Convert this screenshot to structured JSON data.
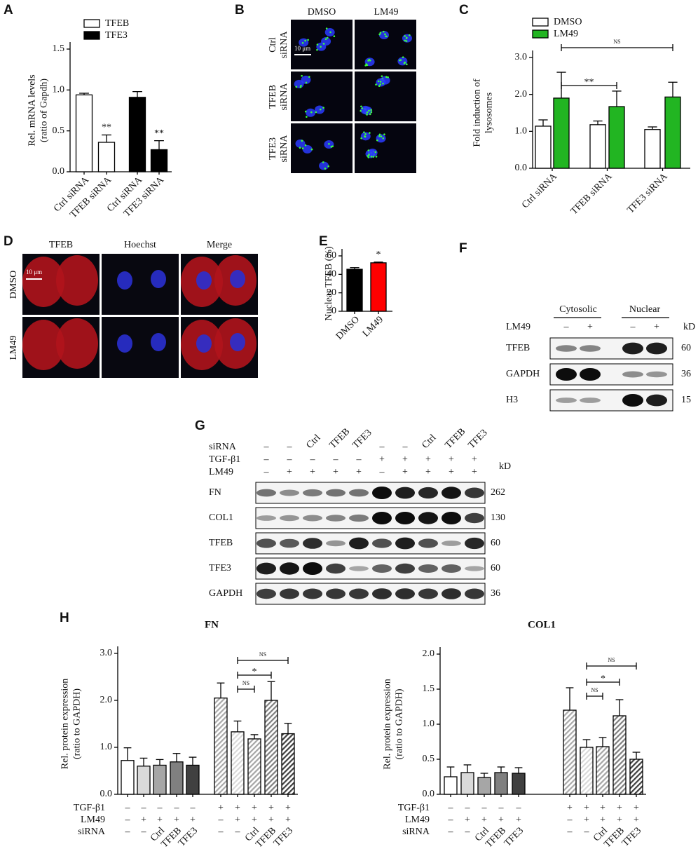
{
  "panel_labels": [
    "A",
    "B",
    "C",
    "D",
    "E",
    "F",
    "G",
    "H"
  ],
  "B": {
    "columns": [
      "DMSO",
      "LM49"
    ],
    "rows": [
      [
        "Ctrl",
        "siRNA"
      ],
      [
        "TFEB",
        "siRNA"
      ],
      [
        "TFE3",
        "siRNA"
      ]
    ],
    "scale_bar": "10 μm"
  },
  "D": {
    "columns": [
      "TFEB",
      "Hoechst",
      "Merge"
    ],
    "rows": [
      "DMSO",
      "LM49"
    ],
    "scale_bar": "10 μm"
  },
  "F": {
    "headers": [
      "Cytosolic",
      "Nuclear"
    ],
    "treatment": {
      "name": "LM49",
      "signs": [
        "–",
        "+",
        "–",
        "+"
      ]
    },
    "unit": "kD",
    "rows": [
      {
        "name": "TFEB",
        "kd": 60
      },
      {
        "name": "GAPDH",
        "kd": 36
      },
      {
        "name": "H3",
        "kd": 15
      }
    ]
  },
  "G": {
    "conditions": [
      {
        "name": "siRNA",
        "values": [
          "–",
          "–",
          "Ctrl",
          "TFEB",
          "TFE3",
          "–",
          "–",
          "Ctrl",
          "TFEB",
          "TFE3"
        ]
      },
      {
        "name": "TGF-β1",
        "values": [
          "–",
          "–",
          "–",
          "–",
          "–",
          "+",
          "+",
          "+",
          "+",
          "+"
        ]
      },
      {
        "name": "LM49",
        "values": [
          "–",
          "+",
          "+",
          "+",
          "+",
          "–",
          "+",
          "+",
          "+",
          "+"
        ]
      }
    ],
    "unit": "kD",
    "rows": [
      {
        "name": "FN",
        "kd": 262
      },
      {
        "name": "COL1",
        "kd": 130
      },
      {
        "name": "TFEB",
        "kd": 60
      },
      {
        "name": "TFE3",
        "kd": 60
      },
      {
        "name": "GAPDH",
        "kd": 36
      }
    ]
  },
  "chart_data": [
    {
      "type": "bar",
      "y_label": [
        "Rel. mRNA levels",
        "(ratio of Gapdh)"
      ],
      "categories": [
        "Ctrl siRNA",
        "TFEB siRNA",
        "Ctrl siRNA",
        "TFE3 siRNA"
      ],
      "values": [
        0.94,
        0.36,
        0.91,
        0.27
      ],
      "errors": [
        0.02,
        0.09,
        0.07,
        0.11
      ],
      "colors": [
        "#ffffff",
        "#ffffff",
        "#000000",
        "#000000"
      ],
      "legend": [
        {
          "name": "TFEB",
          "color": "#ffffff"
        },
        {
          "name": "TFE3",
          "color": "#000000"
        }
      ],
      "annotations": [
        "**",
        "**"
      ],
      "ylim": [
        0,
        1.5
      ],
      "yticks": [
        {
          "value": 0,
          "label": "0.0"
        },
        0.5,
        {
          "value": 1,
          "label": "1.0"
        },
        1.5
      ]
    },
    {
      "type": "grouped-bar",
      "y_label": [
        "Fold induction of",
        "lysosomes"
      ],
      "categories": [
        "Ctrl siRNA",
        "TFEB siRNA",
        "TFE3 siRNA"
      ],
      "series": [
        {
          "name": "DMSO",
          "color": "#ffffff",
          "values": [
            1.14,
            1.18,
            1.05
          ],
          "errors": [
            0.17,
            0.1,
            0.07
          ]
        },
        {
          "name": "LM49",
          "color": "#22b522",
          "values": [
            1.9,
            1.67,
            1.93
          ],
          "errors": [
            0.7,
            0.42,
            0.4
          ]
        }
      ],
      "brackets": [
        "**",
        "NS"
      ],
      "ylim": [
        0,
        3
      ],
      "yticks": [
        {
          "value": 0,
          "label": "0.0"
        },
        {
          "value": 1,
          "label": "1.0"
        },
        {
          "value": 2,
          "label": "2.0"
        },
        {
          "value": 3,
          "label": "3.0"
        }
      ]
    },
    {
      "type": "bar",
      "y_label": [
        "Nuclear TFEB (%)"
      ],
      "categories": [
        "DMSO",
        "LM49"
      ],
      "values": [
        45.5,
        52.5
      ],
      "errors": [
        1.8,
        0.8
      ],
      "colors": [
        "#000000",
        "#ff0000"
      ],
      "annotations": [
        "*"
      ],
      "ylim": [
        0,
        60
      ],
      "yticks": [
        0,
        20,
        40,
        60
      ]
    },
    {
      "type": "bar",
      "title": "FN",
      "y_label": [
        "Rel. protein expression",
        "(ratio to GAPDH)"
      ],
      "values": [
        0.72,
        0.6,
        0.62,
        0.69,
        0.62,
        2.05,
        1.33,
        1.18,
        2.0,
        1.29
      ],
      "errors": [
        0.27,
        0.17,
        0.12,
        0.18,
        0.17,
        0.32,
        0.23,
        0.09,
        0.4,
        0.22
      ],
      "colors": [
        "#ffffff",
        "#d9d9d9",
        "#a6a6a6",
        "#808080",
        "#404040",
        "#ffffff",
        "#d9d9d9",
        "#a6a6a6",
        "#808080",
        "#404040"
      ],
      "hatch": [
        false,
        false,
        false,
        false,
        false,
        true,
        true,
        true,
        true,
        true
      ],
      "conditions": [
        {
          "name": "TGF-β1",
          "values": [
            "–",
            "–",
            "–",
            "–",
            "–",
            "+",
            "+",
            "+",
            "+",
            "+"
          ]
        },
        {
          "name": "LM49",
          "values": [
            "–",
            "+",
            "+",
            "+",
            "+",
            "–",
            "+",
            "+",
            "+",
            "+"
          ]
        },
        {
          "name": "siRNA",
          "values": [
            "–",
            "–",
            "Ctrl",
            "TFEB",
            "TFE3",
            "–",
            "–",
            "Ctrl",
            "TFEB",
            "TFE3"
          ]
        }
      ],
      "brackets": [
        "NS",
        "*",
        "NS"
      ],
      "ylim": [
        0,
        3
      ],
      "yticks": [
        {
          "value": 0,
          "label": "0.0"
        },
        {
          "value": 1,
          "label": "1.0"
        },
        {
          "value": 2,
          "label": "2.0"
        },
        {
          "value": 3,
          "label": "3.0"
        }
      ]
    },
    {
      "type": "bar",
      "title": "COL1",
      "y_label": [
        "Rel. protein expression",
        "(ratio to GAPDH)"
      ],
      "values": [
        0.25,
        0.31,
        0.24,
        0.31,
        0.3,
        1.2,
        0.67,
        0.68,
        1.12,
        0.5
      ],
      "errors": [
        0.14,
        0.11,
        0.06,
        0.08,
        0.08,
        0.32,
        0.11,
        0.13,
        0.23,
        0.1
      ],
      "colors": [
        "#ffffff",
        "#d9d9d9",
        "#a6a6a6",
        "#808080",
        "#404040",
        "#ffffff",
        "#d9d9d9",
        "#a6a6a6",
        "#808080",
        "#404040"
      ],
      "hatch": [
        false,
        false,
        false,
        false,
        false,
        true,
        true,
        true,
        true,
        true
      ],
      "conditions": [
        {
          "name": "TGF-β1",
          "values": [
            "–",
            "–",
            "–",
            "–",
            "–",
            "+",
            "+",
            "+",
            "+",
            "+"
          ]
        },
        {
          "name": "LM49",
          "values": [
            "–",
            "+",
            "+",
            "+",
            "+",
            "–",
            "+",
            "+",
            "+",
            "+"
          ]
        },
        {
          "name": "siRNA",
          "values": [
            "–",
            "–",
            "Ctrl",
            "TFEB",
            "TFE3",
            "–",
            "–",
            "Ctrl",
            "TFEB",
            "TFE3"
          ]
        }
      ],
      "brackets": [
        "NS",
        "*",
        "NS"
      ],
      "ylim": [
        0,
        2
      ],
      "yticks": [
        {
          "value": 0,
          "label": "0.0"
        },
        0.5,
        {
          "value": 1,
          "label": "1.0"
        },
        1.5,
        {
          "value": 2,
          "label": "2.0"
        }
      ]
    }
  ]
}
